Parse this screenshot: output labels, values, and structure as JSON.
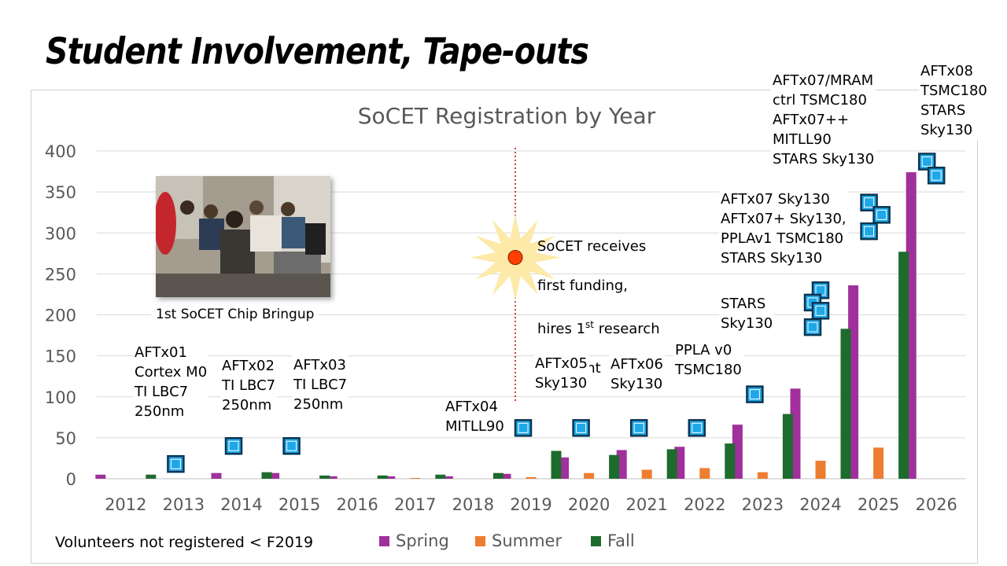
{
  "slide_title": "Student Involvement, Tape-outs",
  "footnote": "Volunteers not registered < F2019",
  "photo_caption": "1st SoCET Chip Bringup",
  "funding_note": {
    "line1": "SoCET receives",
    "line2": "first funding,",
    "line3_pre": "hires 1",
    "line3_sup": "st",
    "line3_post": " research",
    "line4": "assistant"
  },
  "annotations": [
    {
      "year": "2013",
      "text": "AFTx01\nCortex M0\nTI LBC7\n250nm"
    },
    {
      "year": "2014",
      "text": "AFTx02\nTI LBC7\n250nm"
    },
    {
      "year": "2015",
      "text": "AFTx03\nTI LBC7\n250nm"
    },
    {
      "year": "2019",
      "text": "AFTx04\nMITLL90"
    },
    {
      "year": "2020",
      "text": "AFTx05\nSky130"
    },
    {
      "year": "2021",
      "text": "AFTx06\nSky130"
    },
    {
      "year": "2022",
      "text": "PPLA v0\nTSMC180"
    },
    {
      "year": "2023",
      "text": "STARS\nSky130"
    },
    {
      "year": "2024",
      "text": "AFTx07 Sky130\nAFTx07+ Sky130,\nPPLAv1 TSMC180\nSTARS Sky130"
    },
    {
      "year": "2025",
      "text": "AFTx07/MRAM\nctrl TSMC180\nAFTx07++\nMITLL90\nSTARS Sky130"
    },
    {
      "year": "2026",
      "text": "AFTx08\nTSMC180\nSTARS\nSky130"
    }
  ],
  "tapeout_markers": [
    {
      "year": "2013",
      "values": [
        18
      ]
    },
    {
      "year": "2014",
      "values": [
        40
      ]
    },
    {
      "year": "2015",
      "values": [
        40
      ]
    },
    {
      "year": "2019",
      "values": [
        62
      ]
    },
    {
      "year": "2020",
      "values": [
        62
      ]
    },
    {
      "year": "2021",
      "values": [
        62
      ]
    },
    {
      "year": "2022",
      "values": [
        62
      ]
    },
    {
      "year": "2023",
      "values": [
        103
      ]
    },
    {
      "year": "2024",
      "values": [
        230,
        215,
        205,
        185
      ]
    },
    {
      "year": "2025",
      "values": [
        337,
        322,
        302
      ]
    },
    {
      "year": "2026",
      "values": [
        387,
        370
      ]
    }
  ],
  "funding_marker": {
    "year": "2019",
    "value": 270
  },
  "colors": {
    "spring": "#a0309b",
    "summer": "#ed7d31",
    "fall": "#1e6b2e",
    "chip": "#1fa8e8",
    "marker": "#ff4000",
    "starburst": "#fde9a8",
    "axis_text": "#595959",
    "grid": "#d9d9d9",
    "divider": "#c00000"
  },
  "chart_data": {
    "type": "bar",
    "title": "SoCET Registration by Year",
    "categories": [
      "2012",
      "2013",
      "2014",
      "2015",
      "2016",
      "2017",
      "2018",
      "2019",
      "2020",
      "2021",
      "2022",
      "2023",
      "2024",
      "2025",
      "2026"
    ],
    "series": [
      {
        "name": "Spring",
        "values": [
          5,
          0,
          7,
          7,
          3,
          3,
          3,
          6,
          26,
          35,
          39,
          66,
          110,
          236,
          374
        ]
      },
      {
        "name": "Summer",
        "values": [
          0,
          0,
          0,
          0,
          0,
          1,
          0,
          2,
          7,
          11,
          13,
          8,
          22,
          38,
          0
        ]
      },
      {
        "name": "Fall",
        "values": [
          5,
          0,
          8,
          4,
          4,
          5,
          7,
          34,
          29,
          36,
          43,
          79,
          183,
          277,
          0
        ]
      }
    ],
    "yticks": [
      0,
      50,
      100,
      150,
      200,
      250,
      300,
      350,
      400
    ],
    "ylim": [
      0,
      400
    ],
    "xlabel": "",
    "ylabel": "",
    "grid": true,
    "legend": "bottom"
  }
}
